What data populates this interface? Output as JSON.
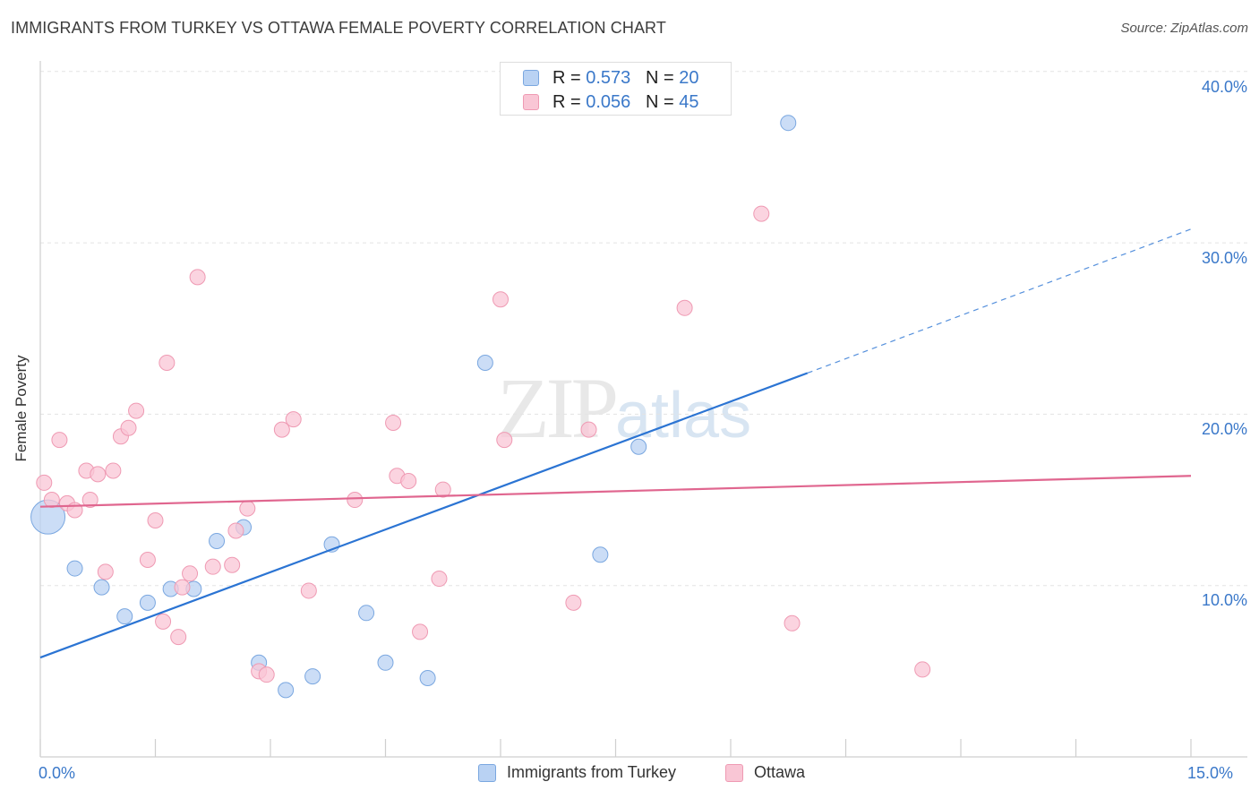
{
  "header": {
    "title": "IMMIGRANTS FROM TURKEY VS OTTAWA FEMALE POVERTY CORRELATION CHART",
    "source": "Source: ZipAtlas.com"
  },
  "watermark": {
    "zip": "ZIP",
    "atlas": "atlas"
  },
  "legend_top": {
    "rows": [
      {
        "r_label": "R = ",
        "r_value": "0.573",
        "n_label": "N = ",
        "n_value": "20"
      },
      {
        "r_label": "R = ",
        "r_value": "0.056",
        "n_label": "N = ",
        "n_value": "45"
      }
    ]
  },
  "colors": {
    "blue_fill": "#b9d2f3",
    "blue_stroke": "#7aa7e0",
    "blue_line": "#2b74d3",
    "pink_fill": "#f9c6d5",
    "pink_stroke": "#ef9ab3",
    "pink_line": "#e0668f",
    "tick_text": "#3a78c9",
    "grid": "#e3e3e3"
  },
  "chart_data": {
    "type": "scatter",
    "title": "IMMIGRANTS FROM TURKEY VS OTTAWA FEMALE POVERTY CORRELATION CHART",
    "xlabel": "",
    "ylabel": "Female Poverty",
    "xlim": [
      0,
      15
    ],
    "ylim": [
      0,
      42
    ],
    "x_tick_labels": [
      "0.0%",
      "15.0%"
    ],
    "y_ticks": [
      10,
      20,
      30,
      40
    ],
    "y_tick_labels": [
      "10.0%",
      "20.0%",
      "30.0%",
      "40.0%"
    ],
    "grid": true,
    "legend_position": "bottom",
    "series": [
      {
        "name": "Immigrants from Turkey",
        "r": 0.573,
        "n": 20,
        "points": [
          {
            "x": 0.1,
            "y": 14.0,
            "big": true
          },
          {
            "x": 0.45,
            "y": 11.0
          },
          {
            "x": 0.8,
            "y": 9.9
          },
          {
            "x": 1.1,
            "y": 8.2
          },
          {
            "x": 1.4,
            "y": 9.0
          },
          {
            "x": 1.7,
            "y": 9.8
          },
          {
            "x": 2.0,
            "y": 9.8
          },
          {
            "x": 2.3,
            "y": 12.6
          },
          {
            "x": 2.65,
            "y": 13.4
          },
          {
            "x": 2.85,
            "y": 5.5
          },
          {
            "x": 3.2,
            "y": 3.9
          },
          {
            "x": 3.55,
            "y": 4.7
          },
          {
            "x": 3.8,
            "y": 12.4
          },
          {
            "x": 4.25,
            "y": 8.4
          },
          {
            "x": 4.5,
            "y": 5.5
          },
          {
            "x": 5.05,
            "y": 4.6
          },
          {
            "x": 5.8,
            "y": 23.0
          },
          {
            "x": 7.3,
            "y": 11.8
          },
          {
            "x": 7.8,
            "y": 18.1
          },
          {
            "x": 9.75,
            "y": 37.0
          }
        ],
        "trend": {
          "x0": 0.0,
          "y0": 5.8,
          "x1": 10.0,
          "y1": 22.4,
          "dashed_to_x": 15.0,
          "dashed_to_y": 30.8
        }
      },
      {
        "name": "Ottawa",
        "r": 0.056,
        "n": 45,
        "points": [
          {
            "x": 0.05,
            "y": 16.0
          },
          {
            "x": 0.15,
            "y": 15.0
          },
          {
            "x": 0.25,
            "y": 18.5
          },
          {
            "x": 0.35,
            "y": 14.8
          },
          {
            "x": 0.45,
            "y": 14.4
          },
          {
            "x": 0.6,
            "y": 16.7
          },
          {
            "x": 0.65,
            "y": 15.0
          },
          {
            "x": 0.75,
            "y": 16.5
          },
          {
            "x": 0.85,
            "y": 10.8
          },
          {
            "x": 0.95,
            "y": 16.7
          },
          {
            "x": 1.05,
            "y": 18.7
          },
          {
            "x": 1.15,
            "y": 19.2
          },
          {
            "x": 1.25,
            "y": 20.2
          },
          {
            "x": 1.4,
            "y": 11.5
          },
          {
            "x": 1.5,
            "y": 13.8
          },
          {
            "x": 1.6,
            "y": 7.9
          },
          {
            "x": 1.65,
            "y": 23.0
          },
          {
            "x": 1.8,
            "y": 7.0
          },
          {
            "x": 1.85,
            "y": 9.9
          },
          {
            "x": 1.95,
            "y": 10.7
          },
          {
            "x": 2.05,
            "y": 28.0
          },
          {
            "x": 2.25,
            "y": 11.1
          },
          {
            "x": 2.5,
            "y": 11.2
          },
          {
            "x": 2.55,
            "y": 13.2
          },
          {
            "x": 2.7,
            "y": 14.5
          },
          {
            "x": 2.85,
            "y": 5.0
          },
          {
            "x": 2.95,
            "y": 4.8
          },
          {
            "x": 3.15,
            "y": 19.1
          },
          {
            "x": 3.3,
            "y": 19.7
          },
          {
            "x": 3.5,
            "y": 9.7
          },
          {
            "x": 4.1,
            "y": 15.0
          },
          {
            "x": 4.6,
            "y": 19.5
          },
          {
            "x": 4.65,
            "y": 16.4
          },
          {
            "x": 4.8,
            "y": 16.1
          },
          {
            "x": 4.95,
            "y": 7.3
          },
          {
            "x": 5.2,
            "y": 10.4
          },
          {
            "x": 5.25,
            "y": 15.6
          },
          {
            "x": 6.0,
            "y": 26.7
          },
          {
            "x": 6.05,
            "y": 18.5
          },
          {
            "x": 6.95,
            "y": 9.0
          },
          {
            "x": 7.15,
            "y": 19.1
          },
          {
            "x": 8.4,
            "y": 26.2
          },
          {
            "x": 9.4,
            "y": 31.7
          },
          {
            "x": 9.8,
            "y": 7.8
          },
          {
            "x": 11.5,
            "y": 5.1
          }
        ],
        "trend": {
          "x0": 0.0,
          "y0": 14.6,
          "x1": 15.0,
          "y1": 16.4
        }
      }
    ]
  }
}
